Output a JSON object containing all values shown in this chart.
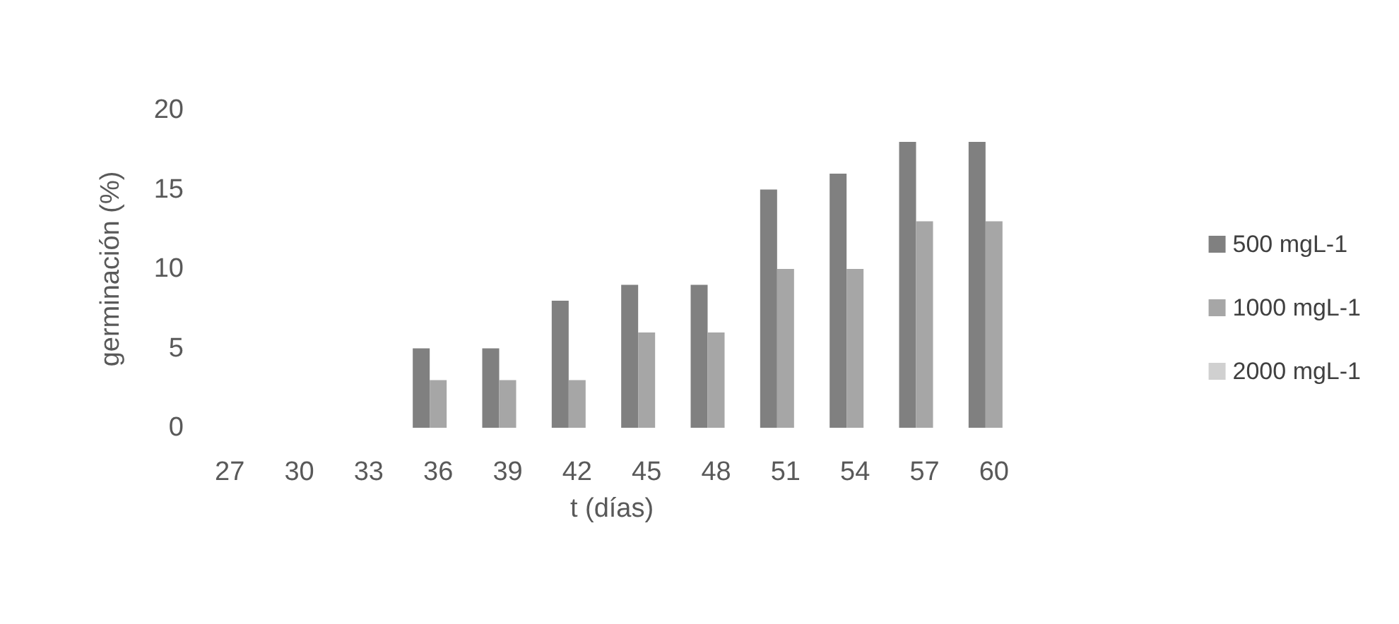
{
  "chart_data": {
    "type": "bar",
    "xlabel": "t (días)",
    "ylabel": "germinación (%)",
    "categories": [
      "27",
      "30",
      "33",
      "36",
      "39",
      "42",
      "45",
      "48",
      "51",
      "54",
      "57",
      "60"
    ],
    "series": [
      {
        "name": "500 mgL-1",
        "color": "#808080",
        "values": [
          0,
          0,
          0,
          5,
          5,
          8,
          9,
          9,
          15,
          16,
          18,
          18
        ]
      },
      {
        "name": "1000 mgL-1",
        "color": "#a6a6a6",
        "values": [
          0,
          0,
          0,
          3,
          3,
          3,
          6,
          6,
          10,
          10,
          13,
          13
        ]
      },
      {
        "name": "2000 mgL-1",
        "color": "#d0d0d0",
        "values": [
          0,
          0,
          0,
          0,
          0,
          0,
          0,
          0,
          0,
          0,
          0,
          0
        ]
      }
    ],
    "ylim": [
      0,
      20
    ],
    "yticks": [
      0,
      5,
      10,
      15,
      20
    ],
    "grid": false,
    "legend": "right"
  }
}
